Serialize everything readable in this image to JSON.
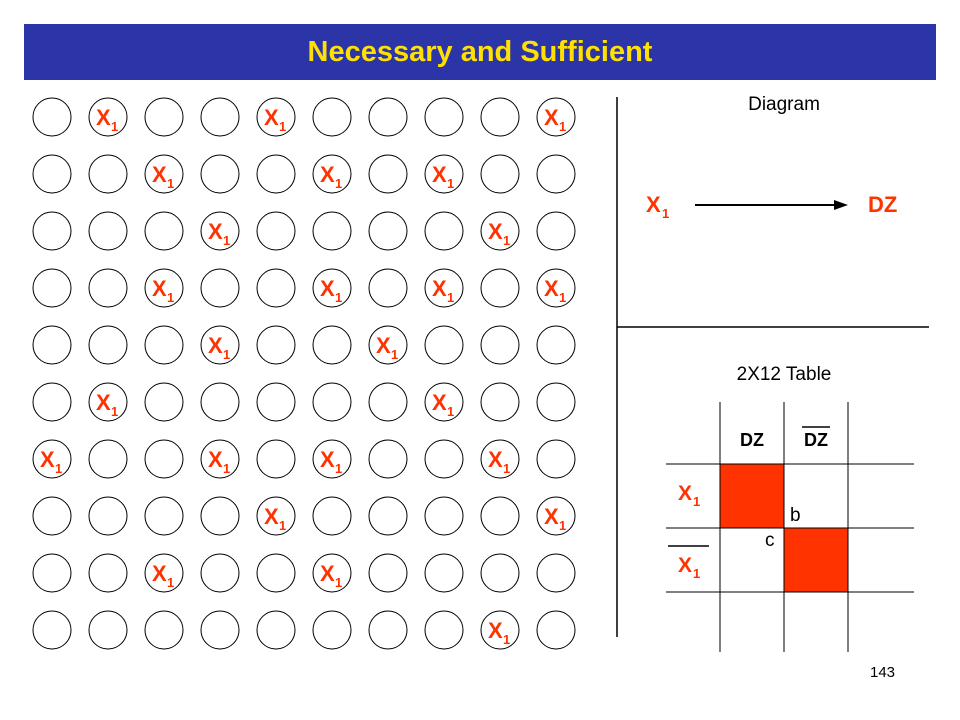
{
  "title": "Necessary and Sufficient",
  "page_number": "143",
  "colors": {
    "title_bg": "#2b35a8",
    "title_text": "#ffe000",
    "accent": "#ff3300",
    "cell_fill": "#ff3300"
  },
  "grid": {
    "rows": 10,
    "cols": 10,
    "marker_label": "X",
    "marker_subscript": "1",
    "marked_cells": [
      [
        0,
        1
      ],
      [
        0,
        4
      ],
      [
        0,
        9
      ],
      [
        1,
        2
      ],
      [
        1,
        5
      ],
      [
        1,
        7
      ],
      [
        2,
        3
      ],
      [
        2,
        8
      ],
      [
        3,
        2
      ],
      [
        3,
        5
      ],
      [
        3,
        7
      ],
      [
        3,
        9
      ],
      [
        4,
        3
      ],
      [
        4,
        6
      ],
      [
        5,
        1
      ],
      [
        5,
        7
      ],
      [
        6,
        0
      ],
      [
        6,
        3
      ],
      [
        6,
        5
      ],
      [
        6,
        8
      ],
      [
        7,
        4
      ],
      [
        7,
        9
      ],
      [
        8,
        2
      ],
      [
        8,
        5
      ],
      [
        9,
        8
      ]
    ]
  },
  "diagram": {
    "heading": "Diagram",
    "from_label": "X",
    "from_subscript": "1",
    "to_label": "DZ"
  },
  "table": {
    "heading": "2X12 Table",
    "col_headers": [
      "DZ",
      "DZ"
    ],
    "col_header_overbar": [
      false,
      true
    ],
    "row_labels": [
      "X",
      "X"
    ],
    "row_subscript": "1",
    "row_label_overbar": [
      false,
      true
    ],
    "cell_b_label": "b",
    "cell_c_label": "c",
    "filled_cells": [
      [
        0,
        0
      ],
      [
        1,
        1
      ]
    ]
  }
}
